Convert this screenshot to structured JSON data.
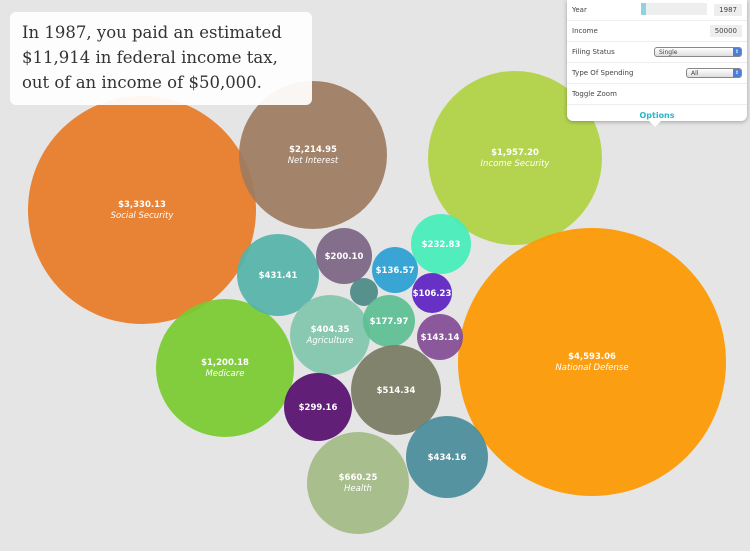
{
  "summary": "In 1987, you paid an estimated $11,914 in federal income tax, out of an income of $50,000.",
  "options": {
    "year_label": "Year",
    "year_value": "1987",
    "year_fraction": 0.08,
    "income_label": "Income",
    "income_value": "50000",
    "filing_label": "Filing Status",
    "filing_value": "Single",
    "spending_label": "Type Of Spending",
    "spending_value": "All",
    "zoom_label": "Toggle Zoom",
    "options_label": "Options"
  },
  "bubbles": [
    {
      "amount": "$3,330.13",
      "name": "Social Security",
      "color": "#e87a26"
    },
    {
      "amount": "$2,214.95",
      "name": "Net Interest",
      "color": "#9d7b5f"
    },
    {
      "amount": "$1,957.20",
      "name": "Income Security",
      "color": "#b0d243"
    },
    {
      "amount": "$4,593.06",
      "name": "National Defense",
      "color": "#fe9800"
    },
    {
      "amount": "$1,200.18",
      "name": "Medicare",
      "color": "#79cb30"
    },
    {
      "amount": "$431.41",
      "name": "",
      "color": "#55b3a9"
    },
    {
      "amount": "$200.10",
      "name": "",
      "color": "#7b6583"
    },
    {
      "amount": "$232.83",
      "name": "",
      "color": "#44eeb9"
    },
    {
      "amount": "$136.57",
      "name": "",
      "color": "#2a9fd3"
    },
    {
      "amount": "",
      "name": "",
      "color": "#4b8a87"
    },
    {
      "amount": "$106.23",
      "name": "",
      "color": "#5c22c2"
    },
    {
      "amount": "$404.35",
      "name": "Agriculture",
      "color": "#82c7ac"
    },
    {
      "amount": "$177.97",
      "name": "",
      "color": "#5cbf92"
    },
    {
      "amount": "$143.14",
      "name": "",
      "color": "#844c96"
    },
    {
      "amount": "$514.34",
      "name": "",
      "color": "#7a7b62"
    },
    {
      "amount": "$299.16",
      "name": "",
      "color": "#560e6e"
    },
    {
      "amount": "$660.25",
      "name": "Health",
      "color": "#a3bb84"
    },
    {
      "amount": "$434.16",
      "name": "",
      "color": "#4a8c9a"
    }
  ]
}
